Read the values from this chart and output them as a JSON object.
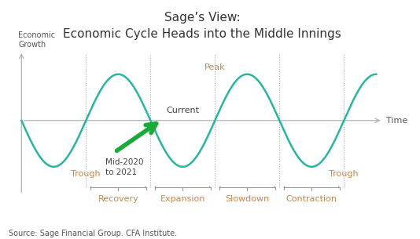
{
  "title_line1": "Sage’s View:",
  "title_line2": "Economic Cycle Heads into the Middle Innings",
  "xlabel": "Time",
  "ylabel": "Economic\nGrowth",
  "source": "Source: Sage Financial Group. CFA Institute.",
  "phase_labels": [
    "Recovery",
    "Expansion",
    "Slowdown",
    "Contraction"
  ],
  "trough_label": "Trough",
  "peak_label": "Peak",
  "current_label": "Current",
  "mid2020_label": "Mid-2020\nto 2021",
  "label_color": "#c8864a",
  "line_color": "#2ab5a0",
  "arrow_color": "#1aaa3a",
  "axis_color": "#aaaaaa",
  "dashed_color": "#aaaaaa",
  "title_fontsize": 11,
  "label_fontsize": 8,
  "source_fontsize": 7,
  "dashed_x_positions": [
    1.0,
    2.0,
    3.0,
    4.0,
    5.0
  ],
  "amplitude": 1.0,
  "x_axis_left": 0.0,
  "x_axis_right": 5.6,
  "y_axis_bottom": -1.6,
  "y_axis_top": 1.5,
  "xlim_left": -0.15,
  "xlim_right": 5.75,
  "ylim_bottom": -2.1,
  "ylim_top": 1.65
}
